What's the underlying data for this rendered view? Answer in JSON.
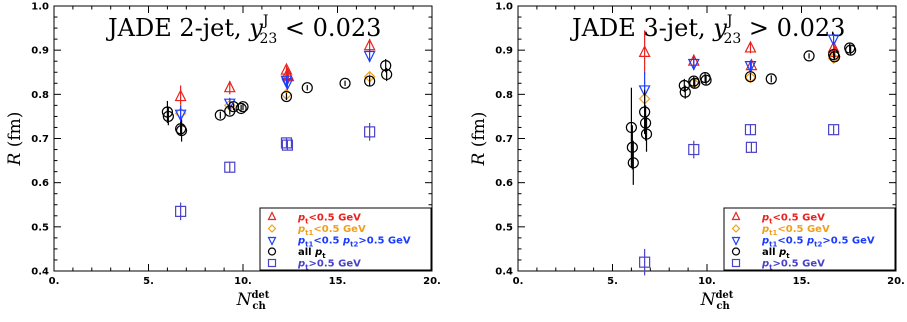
{
  "colors": {
    "red": "#e8221e",
    "orange": "#f0a020",
    "blue": "#1a3cff",
    "black": "#000000",
    "purple": "#4a42c8"
  },
  "chart_data": [
    {
      "type": "scatter",
      "title": {
        "main": "JADE 2-jet, ",
        "var": "y",
        "sup": "J",
        "sub": "23",
        "rel": " < 0.023"
      },
      "xlabel": {
        "main": "N",
        "sub": "ch",
        "sup": "det"
      },
      "ylabel": {
        "main": "R",
        "unit": " (fm)"
      },
      "xlim": [
        0,
        20
      ],
      "ylim": [
        0.4,
        1.0
      ],
      "xticks": [
        "0.",
        "5.",
        "10.",
        "15.",
        "20."
      ],
      "xtick_values": [
        0,
        5,
        10,
        15,
        20
      ],
      "yticks": [
        "0.4",
        "0.5",
        "0.6",
        "0.7",
        "0.8",
        "0.9",
        "1.0"
      ],
      "ytick_values": [
        0.4,
        0.5,
        0.6,
        0.7,
        0.8,
        0.9,
        1.0
      ],
      "legend_position": "bottom-right",
      "series": [
        {
          "key": "pt_lt",
          "marker": "triangle-up",
          "color_key": "red",
          "legend": {
            "var": "p",
            "sub": "t",
            "rest": "<0.5 GeV"
          },
          "points": [
            {
              "x": 6.7,
              "y": 0.795,
              "err": 0.025
            },
            {
              "x": 9.3,
              "y": 0.815,
              "err": 0.015
            },
            {
              "x": 12.3,
              "y": 0.855,
              "err": 0.01
            },
            {
              "x": 12.35,
              "y": 0.845,
              "err": 0.01
            },
            {
              "x": 12.4,
              "y": 0.84,
              "err": 0.01
            },
            {
              "x": 16.7,
              "y": 0.91,
              "err": 0.015
            }
          ]
        },
        {
          "key": "pt1_lt",
          "marker": "diamond",
          "color_key": "orange",
          "legend": {
            "var": "p",
            "sub": "t1",
            "rest": "<0.5 GeV"
          },
          "points": [
            {
              "x": 6.7,
              "y": 0.757,
              "err": 0.02
            },
            {
              "x": 9.3,
              "y": 0.775,
              "err": 0.012
            },
            {
              "x": 12.3,
              "y": 0.8,
              "err": 0.01
            },
            {
              "x": 16.7,
              "y": 0.84,
              "err": 0.012
            }
          ]
        },
        {
          "key": "pt1_pt2",
          "marker": "triangle-down",
          "color_key": "blue",
          "legend": {
            "var": "p",
            "sub": "t1",
            "rest": "<0.5 ",
            "var2": "p",
            "sub2": "t2",
            "rest2": ">0.5 GeV"
          },
          "points": [
            {
              "x": 6.7,
              "y": 0.755,
              "err": 0.02
            },
            {
              "x": 9.3,
              "y": 0.78,
              "err": 0.012
            },
            {
              "x": 12.3,
              "y": 0.832,
              "err": 0.01
            },
            {
              "x": 12.35,
              "y": 0.825,
              "err": 0.01
            },
            {
              "x": 16.7,
              "y": 0.888,
              "err": 0.015
            }
          ]
        },
        {
          "key": "all_pt",
          "marker": "circle",
          "color_key": "black",
          "legend": {
            "rest0": "all ",
            "var": "p",
            "sub": "t"
          },
          "points": [
            {
              "x": 6.0,
              "y": 0.76,
              "err": 0.025
            },
            {
              "x": 6.05,
              "y": 0.75,
              "err": 0.02
            },
            {
              "x": 6.7,
              "y": 0.722,
              "err": 0.015
            },
            {
              "x": 6.75,
              "y": 0.718,
              "err": 0.025
            },
            {
              "x": 8.8,
              "y": 0.753,
              "err": 0.008
            },
            {
              "x": 9.3,
              "y": 0.762,
              "err": 0.008
            },
            {
              "x": 9.5,
              "y": 0.772,
              "err": 0.008
            },
            {
              "x": 9.9,
              "y": 0.768,
              "err": 0.008
            },
            {
              "x": 10.0,
              "y": 0.772,
              "err": 0.008
            },
            {
              "x": 12.3,
              "y": 0.795,
              "err": 0.008
            },
            {
              "x": 13.4,
              "y": 0.815,
              "err": 0.006
            },
            {
              "x": 15.4,
              "y": 0.825,
              "err": 0.006
            },
            {
              "x": 16.7,
              "y": 0.83,
              "err": 0.01
            },
            {
              "x": 17.55,
              "y": 0.865,
              "err": 0.015
            },
            {
              "x": 17.6,
              "y": 0.845,
              "err": 0.015
            }
          ]
        },
        {
          "key": "pt_gt",
          "marker": "square",
          "color_key": "purple",
          "legend": {
            "var": "p",
            "sub": "t",
            "rest": ">0.5 GeV"
          },
          "points": [
            {
              "x": 6.7,
              "y": 0.535,
              "err": 0.02
            },
            {
              "x": 9.3,
              "y": 0.635,
              "err": 0.012
            },
            {
              "x": 12.3,
              "y": 0.69,
              "err": 0.012
            },
            {
              "x": 12.35,
              "y": 0.685,
              "err": 0.012
            },
            {
              "x": 16.7,
              "y": 0.715,
              "err": 0.02
            }
          ]
        }
      ]
    },
    {
      "type": "scatter",
      "title": {
        "main": "JADE 3-jet, ",
        "var": "y",
        "sup": "J",
        "sub": "23",
        "rel": " > 0.023"
      },
      "xlabel": {
        "main": "N",
        "sub": "ch",
        "sup": "det"
      },
      "ylabel": {
        "main": "R",
        "unit": " (fm)"
      },
      "xlim": [
        0,
        20
      ],
      "ylim": [
        0.4,
        1.0
      ],
      "xticks": [
        "0.",
        "5.",
        "10.",
        "15.",
        "20."
      ],
      "xtick_values": [
        0,
        5,
        10,
        15,
        20
      ],
      "yticks": [
        "0.4",
        "0.5",
        "0.6",
        "0.7",
        "0.8",
        "0.9",
        "1.0"
      ],
      "ytick_values": [
        0.4,
        0.5,
        0.6,
        0.7,
        0.8,
        0.9,
        1.0
      ],
      "legend_position": "bottom-right",
      "series": [
        {
          "key": "pt_lt",
          "marker": "triangle-up",
          "color_key": "red",
          "legend": {
            "var": "p",
            "sub": "t",
            "rest": "<0.5 GeV"
          },
          "points": [
            {
              "x": 6.7,
              "y": 0.895,
              "err": 0.05
            },
            {
              "x": 9.3,
              "y": 0.875,
              "err": 0.015
            },
            {
              "x": 12.3,
              "y": 0.905,
              "err": 0.012
            },
            {
              "x": 12.35,
              "y": 0.865,
              "err": 0.012
            },
            {
              "x": 16.7,
              "y": 0.905,
              "err": 0.012
            },
            {
              "x": 16.75,
              "y": 0.895,
              "err": 0.012
            }
          ]
        },
        {
          "key": "pt1_lt",
          "marker": "diamond",
          "color_key": "orange",
          "legend": {
            "var": "p",
            "sub": "t1",
            "rest": "<0.5 GeV"
          },
          "points": [
            {
              "x": 6.7,
              "y": 0.79,
              "err": 0.04
            },
            {
              "x": 9.3,
              "y": 0.825,
              "err": 0.012
            },
            {
              "x": 12.3,
              "y": 0.838,
              "err": 0.01
            },
            {
              "x": 16.7,
              "y": 0.882,
              "err": 0.01
            }
          ]
        },
        {
          "key": "pt1_pt2",
          "marker": "triangle-down",
          "color_key": "blue",
          "legend": {
            "var": "p",
            "sub": "t1",
            "rest": "<0.5 ",
            "var2": "p",
            "sub2": "t2",
            "rest2": ">0.5 GeV"
          },
          "points": [
            {
              "x": 6.7,
              "y": 0.81,
              "err": 0.04
            },
            {
              "x": 9.3,
              "y": 0.87,
              "err": 0.015
            },
            {
              "x": 12.3,
              "y": 0.865,
              "err": 0.012
            },
            {
              "x": 16.7,
              "y": 0.925,
              "err": 0.012
            }
          ]
        },
        {
          "key": "all_pt",
          "marker": "circle",
          "color_key": "black",
          "legend": {
            "rest0": "all ",
            "var": "p",
            "sub": "t"
          },
          "points": [
            {
              "x": 6.0,
              "y": 0.725,
              "err": 0.09
            },
            {
              "x": 6.05,
              "y": 0.68,
              "err": 0.05
            },
            {
              "x": 6.1,
              "y": 0.645,
              "err": 0.05
            },
            {
              "x": 6.7,
              "y": 0.76,
              "err": 0.05
            },
            {
              "x": 6.75,
              "y": 0.735,
              "err": 0.04
            },
            {
              "x": 6.8,
              "y": 0.71,
              "err": 0.04
            },
            {
              "x": 8.8,
              "y": 0.82,
              "err": 0.015
            },
            {
              "x": 8.85,
              "y": 0.805,
              "err": 0.015
            },
            {
              "x": 9.3,
              "y": 0.83,
              "err": 0.01
            },
            {
              "x": 9.35,
              "y": 0.825,
              "err": 0.01
            },
            {
              "x": 9.9,
              "y": 0.838,
              "err": 0.01
            },
            {
              "x": 9.95,
              "y": 0.832,
              "err": 0.01
            },
            {
              "x": 12.3,
              "y": 0.84,
              "err": 0.008
            },
            {
              "x": 13.4,
              "y": 0.835,
              "err": 0.008
            },
            {
              "x": 15.4,
              "y": 0.887,
              "err": 0.006
            },
            {
              "x": 16.7,
              "y": 0.89,
              "err": 0.008
            },
            {
              "x": 16.75,
              "y": 0.885,
              "err": 0.008
            },
            {
              "x": 17.55,
              "y": 0.905,
              "err": 0.01
            },
            {
              "x": 17.6,
              "y": 0.9,
              "err": 0.01
            }
          ]
        },
        {
          "key": "pt_gt",
          "marker": "square",
          "color_key": "purple",
          "legend": {
            "var": "p",
            "sub": "t",
            "rest": ">0.5 GeV"
          },
          "points": [
            {
              "x": 6.7,
              "y": 0.42,
              "err": 0.03
            },
            {
              "x": 9.3,
              "y": 0.675,
              "err": 0.02
            },
            {
              "x": 12.3,
              "y": 0.72,
              "err": 0.012
            },
            {
              "x": 12.35,
              "y": 0.68,
              "err": 0.012
            },
            {
              "x": 16.7,
              "y": 0.72,
              "err": 0.01
            }
          ]
        }
      ]
    }
  ]
}
